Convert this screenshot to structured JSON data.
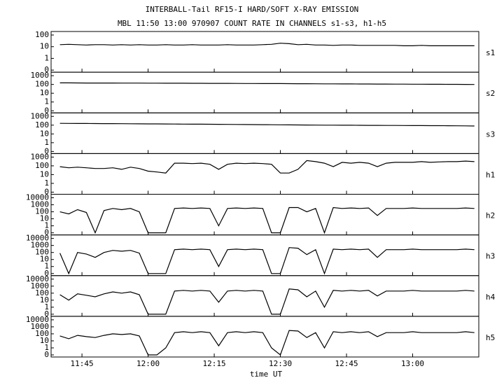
{
  "chart_data": {
    "type": "line",
    "title": "INTERBALL-Tail RF15-I HARD/SOFT X-RAY EMISSION",
    "subtitle": "MBL 11:50 13:00 970907  COUNT RATE IN CHANNELS s1-s3, h1-h5",
    "xlabel": "time UT",
    "xlim": [
      "11:38",
      "13:15"
    ],
    "xticks": [
      "11:45",
      "12:00",
      "12:15",
      "12:30",
      "12:45",
      "13:00"
    ],
    "yscale": "log",
    "x": [
      "11:40",
      "11:42",
      "11:44",
      "11:46",
      "11:48",
      "11:50",
      "11:52",
      "11:54",
      "11:56",
      "11:58",
      "12:00",
      "12:02",
      "12:04",
      "12:06",
      "12:08",
      "12:10",
      "12:12",
      "12:14",
      "12:16",
      "12:18",
      "12:20",
      "12:22",
      "12:24",
      "12:26",
      "12:28",
      "12:30",
      "12:32",
      "12:34",
      "12:36",
      "12:38",
      "12:40",
      "12:42",
      "12:44",
      "12:46",
      "12:48",
      "12:50",
      "12:52",
      "12:54",
      "12:56",
      "12:58",
      "13:00",
      "13:02",
      "13:04",
      "13:06",
      "13:08",
      "13:10",
      "13:12",
      "13:14"
    ],
    "series": [
      {
        "name": "s1",
        "color": "#000000",
        "ylim": [
          0,
          100
        ],
        "yticks": [
          0,
          1,
          10,
          100
        ],
        "values": [
          15,
          16,
          15,
          14,
          15,
          15,
          14,
          15,
          14,
          15,
          14,
          14,
          15,
          14,
          14,
          15,
          14,
          14,
          14,
          15,
          14,
          14,
          14,
          15,
          16,
          20,
          18,
          15,
          16,
          14,
          14,
          13,
          14,
          14,
          13,
          13,
          13,
          13,
          13,
          12,
          12,
          13,
          12,
          12,
          12,
          12,
          12,
          12
        ]
      },
      {
        "name": "s2",
        "color": "#000000",
        "ylim": [
          0,
          1000
        ],
        "yticks": [
          0,
          1,
          10,
          100,
          1000
        ],
        "values": [
          150,
          150,
          148,
          147,
          146,
          145,
          145,
          144,
          143,
          142,
          140,
          140,
          139,
          138,
          137,
          136,
          135,
          134,
          133,
          132,
          130,
          129,
          128,
          127,
          126,
          125,
          124,
          122,
          121,
          120,
          118,
          117,
          115,
          114,
          113,
          112,
          111,
          110,
          109,
          108,
          107,
          106,
          105,
          104,
          103,
          102,
          101,
          100
        ]
      },
      {
        "name": "s3",
        "color": "#000000",
        "ylim": [
          0,
          1000
        ],
        "yticks": [
          0,
          1,
          10,
          100,
          1000
        ],
        "values": [
          160,
          158,
          156,
          154,
          152,
          150,
          148,
          146,
          144,
          142,
          140,
          138,
          136,
          134,
          132,
          130,
          128,
          126,
          124,
          122,
          120,
          118,
          116,
          114,
          112,
          110,
          108,
          106,
          104,
          102,
          100,
          99,
          98,
          97,
          96,
          95,
          94,
          93,
          92,
          91,
          90,
          89,
          88,
          87,
          86,
          85,
          83,
          80
        ]
      },
      {
        "name": "h1",
        "color": "#000000",
        "ylim": [
          0,
          1000
        ],
        "yticks": [
          0,
          1,
          10,
          100,
          1000
        ],
        "values": [
          80,
          60,
          70,
          60,
          50,
          50,
          60,
          40,
          70,
          50,
          25,
          20,
          15,
          200,
          200,
          180,
          200,
          150,
          40,
          150,
          200,
          180,
          200,
          180,
          150,
          15,
          15,
          40,
          400,
          300,
          200,
          80,
          250,
          200,
          250,
          200,
          80,
          200,
          250,
          250,
          250,
          300,
          250,
          280,
          300,
          300,
          350,
          300
        ]
      },
      {
        "name": "h2",
        "color": "#000000",
        "ylim": [
          0,
          10000
        ],
        "yticks": [
          0,
          1,
          10,
          100,
          1000,
          10000
        ],
        "values": [
          100,
          50,
          200,
          80,
          0,
          150,
          300,
          200,
          300,
          100,
          0,
          0,
          0,
          300,
          350,
          300,
          350,
          300,
          1,
          300,
          350,
          300,
          350,
          300,
          0,
          0,
          400,
          400,
          100,
          300,
          0,
          400,
          300,
          350,
          300,
          350,
          30,
          300,
          300,
          300,
          350,
          300,
          300,
          300,
          300,
          300,
          350,
          300
        ]
      },
      {
        "name": "h3",
        "color": "#000000",
        "ylim": [
          0,
          10000
        ],
        "yticks": [
          0,
          1,
          10,
          100,
          1000,
          10000
        ],
        "values": [
          80,
          0,
          100,
          60,
          20,
          100,
          200,
          150,
          200,
          80,
          0,
          0,
          0,
          250,
          300,
          250,
          300,
          250,
          1,
          250,
          300,
          250,
          300,
          250,
          0,
          0,
          500,
          400,
          50,
          250,
          0,
          300,
          250,
          300,
          250,
          300,
          20,
          250,
          250,
          250,
          300,
          250,
          250,
          250,
          250,
          250,
          300,
          250
        ]
      },
      {
        "name": "h4",
        "color": "#000000",
        "ylim": [
          0,
          10000
        ],
        "yticks": [
          0,
          1,
          10,
          100,
          1000,
          10000
        ],
        "values": [
          60,
          10,
          80,
          50,
          30,
          80,
          150,
          100,
          150,
          60,
          0,
          0,
          0,
          200,
          250,
          200,
          250,
          200,
          5,
          200,
          250,
          200,
          250,
          200,
          0,
          0,
          400,
          300,
          30,
          200,
          1,
          250,
          200,
          250,
          200,
          250,
          40,
          200,
          200,
          200,
          250,
          200,
          200,
          200,
          200,
          200,
          250,
          200
        ]
      },
      {
        "name": "h5",
        "color": "#000000",
        "ylim": [
          0,
          10000
        ],
        "yticks": [
          0,
          1,
          10,
          100,
          1000,
          10000
        ],
        "values": [
          50,
          20,
          60,
          40,
          30,
          60,
          100,
          80,
          100,
          50,
          0,
          0,
          1,
          150,
          200,
          150,
          200,
          150,
          2,
          150,
          200,
          150,
          200,
          150,
          1,
          0,
          300,
          250,
          30,
          150,
          1,
          200,
          150,
          200,
          150,
          200,
          40,
          150,
          150,
          150,
          200,
          150,
          150,
          150,
          150,
          150,
          200,
          150
        ]
      }
    ]
  }
}
